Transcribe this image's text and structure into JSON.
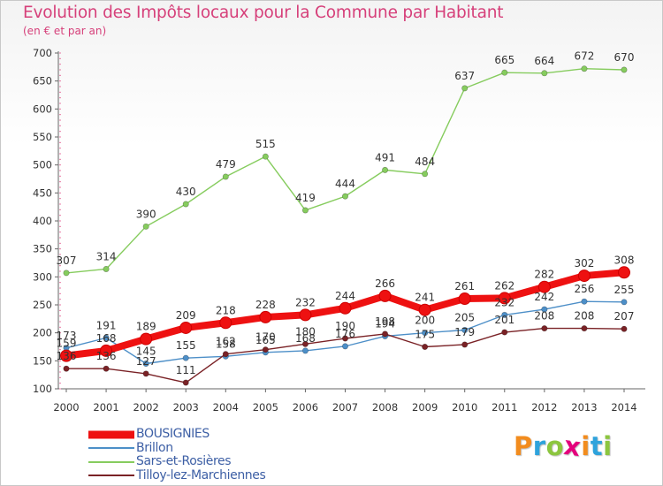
{
  "header": {
    "title": "Evolution des Impôts locaux pour la Commune par Habitant",
    "subtitle": "(en € et par an)"
  },
  "brand": {
    "text": "Proxiti",
    "colors": [
      "#f28c1e",
      "#2ea3dc",
      "#8cc63f",
      "#e4007c",
      "#f28c1e",
      "#2ea3dc",
      "#8cc63f"
    ]
  },
  "chart_data": {
    "type": "line",
    "title": "Evolution des Impôts locaux pour la Commune par Habitant",
    "subtitle": "(en € et par an)",
    "xlabel": "",
    "ylabel": "",
    "x": [
      2000,
      2001,
      2002,
      2003,
      2004,
      2005,
      2006,
      2007,
      2008,
      2009,
      2010,
      2011,
      2012,
      2013,
      2014
    ],
    "ylim": [
      100,
      700
    ],
    "yticks": [
      100,
      150,
      200,
      250,
      300,
      350,
      400,
      450,
      500,
      550,
      600,
      650,
      700
    ],
    "grid": false,
    "legend_placement": "bottom-left",
    "series": [
      {
        "name": "BOUSIGNIES",
        "color": "#ee1111",
        "values": [
          159,
          168,
          189,
          209,
          218,
          228,
          232,
          244,
          266,
          241,
          261,
          262,
          282,
          302,
          308
        ],
        "labels": [
          "159",
          "168",
          "189",
          "209",
          "218",
          "228",
          "232",
          "244",
          "266",
          "241",
          "261",
          "262",
          "282",
          "302",
          "308"
        ]
      },
      {
        "name": "Brillon",
        "color": "#4d8fc8",
        "values": [
          173,
          191,
          145,
          155,
          158,
          165,
          168,
          176,
          194,
          200,
          205,
          232,
          242,
          256,
          255
        ],
        "labels": [
          "173",
          "191",
          "145",
          "155",
          "158",
          "165",
          "168",
          "176",
          "194",
          "200",
          "205",
          "232",
          "242",
          "256",
          "255"
        ]
      },
      {
        "name": "Sars-et-Rosières",
        "color": "#86cc5e",
        "values": [
          307,
          314,
          390,
          430,
          479,
          515,
          419,
          444,
          491,
          484,
          637,
          665,
          664,
          672,
          670
        ],
        "labels": [
          "307",
          "314",
          "390",
          "430",
          "479",
          "515",
          "419",
          "444",
          "491",
          "484",
          "637",
          "665",
          "664",
          "672",
          "670"
        ]
      },
      {
        "name": "Tilloy-lez-Marchiennes",
        "color": "#7a2226",
        "values": [
          136,
          136,
          127,
          111,
          162,
          170,
          180,
          190,
          198,
          175,
          179,
          201,
          208,
          208,
          207
        ],
        "labels": [
          "136",
          "136",
          "127",
          "111",
          "162",
          "170",
          "180",
          "190",
          "198",
          "175",
          "179",
          "201",
          "208",
          "208",
          "207"
        ]
      }
    ]
  }
}
